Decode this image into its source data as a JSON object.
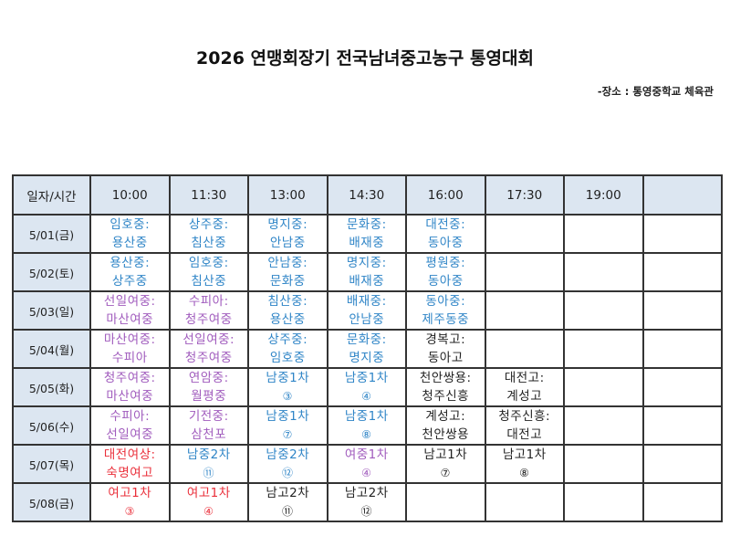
{
  "header": {
    "title": "2026 연맹회장기 전국남녀중고농구 통영대회",
    "venue": "-장소 : 통영중학교 체육관"
  },
  "colors": {
    "boys_ms": "#2f85c7",
    "girls_ms": "#a05bbd",
    "girls_hs": "#ea2f3a",
    "boys_hs": "#222222",
    "header_bg": "#dce6f1",
    "border": "#333333"
  },
  "table": {
    "corner_label": "일자/시간",
    "times": [
      "10:00",
      "11:30",
      "13:00",
      "14:30",
      "16:00",
      "17:30",
      "19:00",
      ""
    ],
    "rows": [
      {
        "date": "5/01(금)",
        "cells": [
          {
            "l1": "임호중:",
            "l2": "용산중",
            "cat": "boys-ms"
          },
          {
            "l1": "상주중:",
            "l2": "침산중",
            "cat": "boys-ms"
          },
          {
            "l1": "명지중:",
            "l2": "안남중",
            "cat": "boys-ms"
          },
          {
            "l1": "문화중:",
            "l2": "배재중",
            "cat": "boys-ms"
          },
          {
            "l1": "대전중:",
            "l2": "동아중",
            "cat": "boys-ms"
          },
          {
            "l1": "",
            "l2": "",
            "cat": ""
          },
          {
            "l1": "",
            "l2": "",
            "cat": ""
          },
          {
            "l1": "",
            "l2": "",
            "cat": ""
          }
        ]
      },
      {
        "date": "5/02(토)",
        "cells": [
          {
            "l1": "용산중:",
            "l2": "상주중",
            "cat": "boys-ms"
          },
          {
            "l1": "임호중:",
            "l2": "침산중",
            "cat": "boys-ms"
          },
          {
            "l1": "안남중:",
            "l2": "문화중",
            "cat": "boys-ms"
          },
          {
            "l1": "명지중:",
            "l2": "배재중",
            "cat": "boys-ms"
          },
          {
            "l1": "평원중:",
            "l2": "동아중",
            "cat": "boys-ms"
          },
          {
            "l1": "",
            "l2": "",
            "cat": ""
          },
          {
            "l1": "",
            "l2": "",
            "cat": ""
          },
          {
            "l1": "",
            "l2": "",
            "cat": ""
          }
        ]
      },
      {
        "date": "5/03(일)",
        "cells": [
          {
            "l1": "선일여중:",
            "l2": "마산여중",
            "cat": "girls-ms"
          },
          {
            "l1": "수피아:",
            "l2": "청주여중",
            "cat": "girls-ms"
          },
          {
            "l1": "침산중:",
            "l2": "용산중",
            "cat": "boys-ms"
          },
          {
            "l1": "배재중:",
            "l2": "안남중",
            "cat": "boys-ms"
          },
          {
            "l1": "동아중:",
            "l2": "제주동중",
            "cat": "boys-ms"
          },
          {
            "l1": "",
            "l2": "",
            "cat": ""
          },
          {
            "l1": "",
            "l2": "",
            "cat": ""
          },
          {
            "l1": "",
            "l2": "",
            "cat": ""
          }
        ]
      },
      {
        "date": "5/04(월)",
        "cells": [
          {
            "l1": "마산여중:",
            "l2": "수피아",
            "cat": "girls-ms"
          },
          {
            "l1": "선일여중:",
            "l2": "청주여중",
            "cat": "girls-ms"
          },
          {
            "l1": "상주중:",
            "l2": "임호중",
            "cat": "boys-ms"
          },
          {
            "l1": "문화중:",
            "l2": "명지중",
            "cat": "boys-ms"
          },
          {
            "l1": "경복고:",
            "l2": "동아고",
            "cat": "boys-hs"
          },
          {
            "l1": "",
            "l2": "",
            "cat": ""
          },
          {
            "l1": "",
            "l2": "",
            "cat": ""
          },
          {
            "l1": "",
            "l2": "",
            "cat": ""
          }
        ]
      },
      {
        "date": "5/05(화)",
        "cells": [
          {
            "l1": "청주여중:",
            "l2": "마산여중",
            "cat": "girls-ms"
          },
          {
            "l1": "연암중:",
            "l2": "월평중",
            "cat": "girls-ms"
          },
          {
            "l1": "남중1차",
            "l2": "③",
            "cat": "boys-ms",
            "num": true
          },
          {
            "l1": "남중1차",
            "l2": "④",
            "cat": "boys-ms",
            "num": true
          },
          {
            "l1": "천안쌍용:",
            "l2": "청주신흥",
            "cat": "boys-hs"
          },
          {
            "l1": "대전고:",
            "l2": "계성고",
            "cat": "boys-hs"
          },
          {
            "l1": "",
            "l2": "",
            "cat": ""
          },
          {
            "l1": "",
            "l2": "",
            "cat": ""
          }
        ]
      },
      {
        "date": "5/06(수)",
        "cells": [
          {
            "l1": "수피아:",
            "l2": "선일여중",
            "cat": "girls-ms"
          },
          {
            "l1": "기전중:",
            "l2": "삼천포",
            "cat": "girls-ms"
          },
          {
            "l1": "남중1차",
            "l2": "⑦",
            "cat": "boys-ms",
            "num": true
          },
          {
            "l1": "남중1차",
            "l2": "⑧",
            "cat": "boys-ms",
            "num": true
          },
          {
            "l1": "계성고:",
            "l2": "천안쌍용",
            "cat": "boys-hs"
          },
          {
            "l1": "청주신흥:",
            "l2": "대전고",
            "cat": "boys-hs"
          },
          {
            "l1": "",
            "l2": "",
            "cat": ""
          },
          {
            "l1": "",
            "l2": "",
            "cat": ""
          }
        ]
      },
      {
        "date": "5/07(목)",
        "cells": [
          {
            "l1": "대전여상:",
            "l2": "숙명여고",
            "cat": "girls-hs"
          },
          {
            "l1": "남중2차",
            "l2": "⑪",
            "cat": "boys-ms",
            "num": true
          },
          {
            "l1": "남중2차",
            "l2": "⑫",
            "cat": "boys-ms",
            "num": true
          },
          {
            "l1": "여중1차",
            "l2": "④",
            "cat": "girls-ms",
            "num": true
          },
          {
            "l1": "남고1차",
            "l2": "⑦",
            "cat": "boys-hs",
            "num": true
          },
          {
            "l1": "남고1차",
            "l2": "⑧",
            "cat": "boys-hs",
            "num": true
          },
          {
            "l1": "",
            "l2": "",
            "cat": ""
          },
          {
            "l1": "",
            "l2": "",
            "cat": ""
          }
        ]
      },
      {
        "date": "5/08(금)",
        "cells": [
          {
            "l1": "여고1차",
            "l2": "③",
            "cat": "girls-hs",
            "num": true
          },
          {
            "l1": "여고1차",
            "l2": "④",
            "cat": "girls-hs",
            "num": true
          },
          {
            "l1": "남고2차",
            "l2": "⑪",
            "cat": "boys-hs",
            "num": true
          },
          {
            "l1": "남고2차",
            "l2": "⑫",
            "cat": "boys-hs",
            "num": true
          },
          {
            "l1": "",
            "l2": "",
            "cat": ""
          },
          {
            "l1": "",
            "l2": "",
            "cat": ""
          },
          {
            "l1": "",
            "l2": "",
            "cat": ""
          },
          {
            "l1": "",
            "l2": "",
            "cat": ""
          }
        ]
      }
    ]
  }
}
